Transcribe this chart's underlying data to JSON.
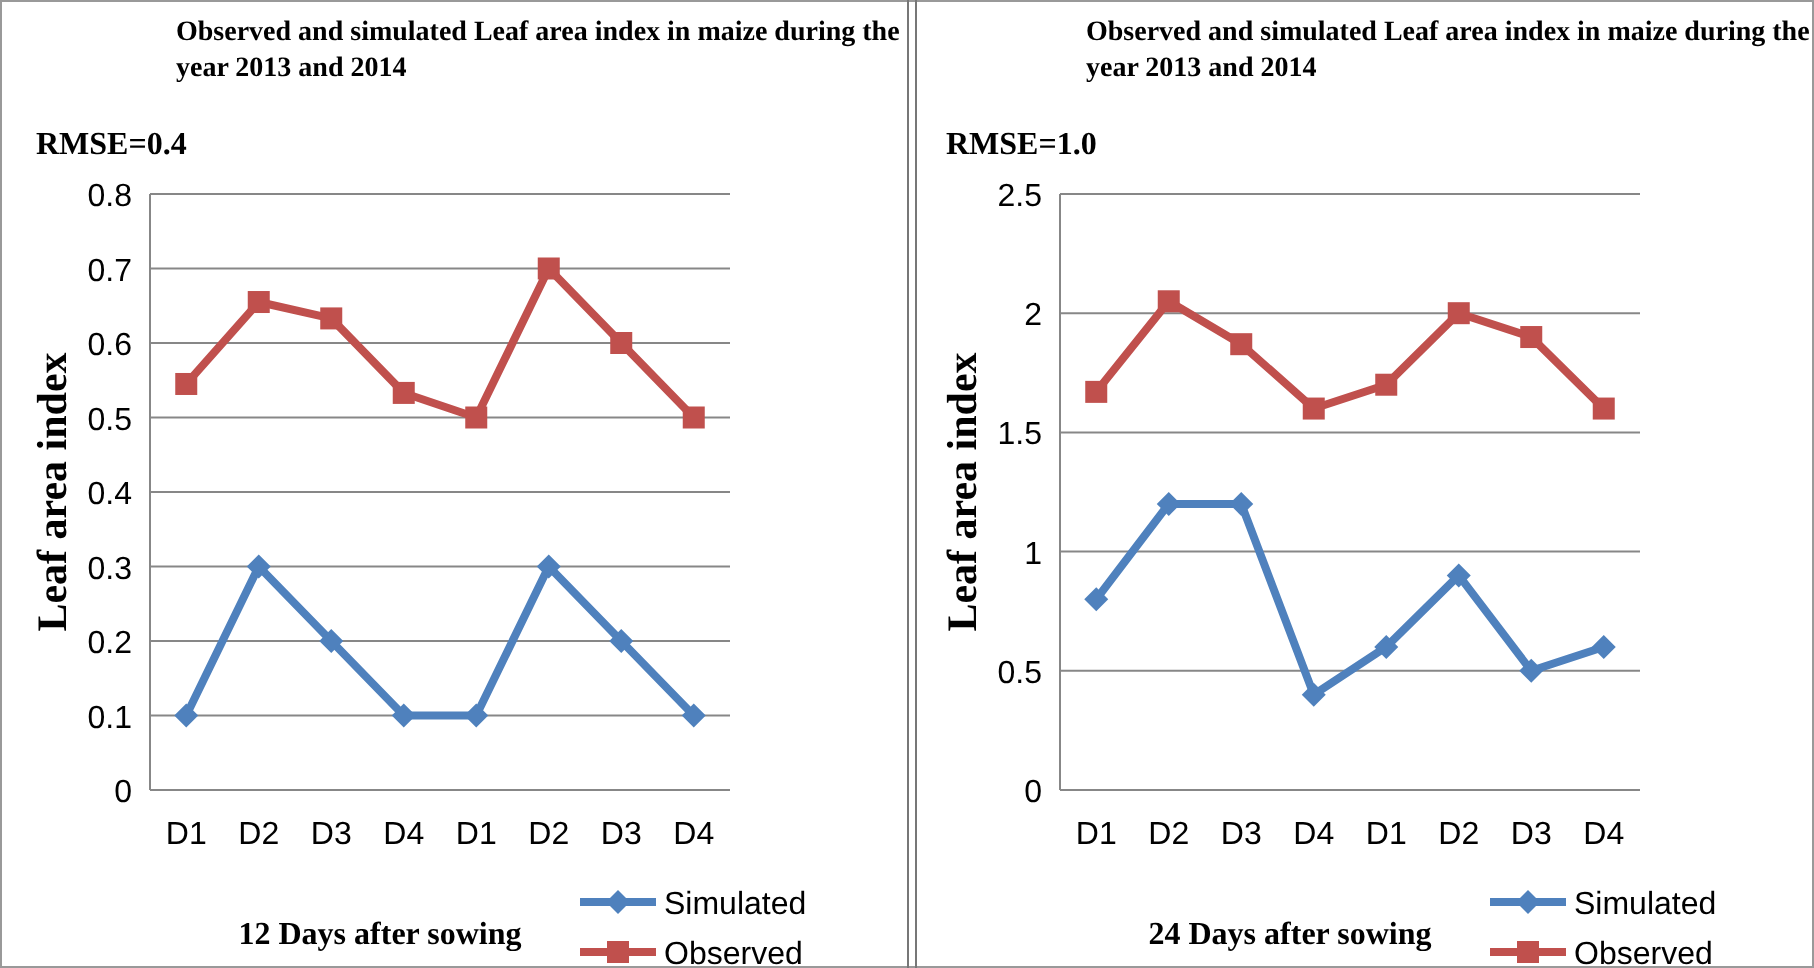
{
  "chart_data": [
    {
      "type": "line",
      "title": "Observed and simulated Leaf area index in maize during the year 2013 and 2014",
      "xlabel": "12 Days after sowing",
      "ylabel": "Leaf area index",
      "annotations": [
        "RMSE=0.4"
      ],
      "categories": [
        "D1",
        "D2",
        "D3",
        "D4",
        "D1",
        "D2",
        "D3",
        "D4"
      ],
      "series": [
        {
          "name": "Simulated",
          "color": "#4f81bd",
          "marker": "diamond",
          "values": [
            0.1,
            0.3,
            0.2,
            0.1,
            0.1,
            0.3,
            0.2,
            0.1
          ]
        },
        {
          "name": "Observed",
          "color": "#c0504d",
          "marker": "square",
          "values": [
            0.545,
            0.655,
            0.633,
            0.533,
            0.5,
            0.7,
            0.6,
            0.5
          ]
        }
      ],
      "ylim": [
        0,
        0.8
      ],
      "yticks": [
        0,
        0.1,
        0.2,
        0.3,
        0.4,
        0.5,
        0.6,
        0.7,
        0.8
      ],
      "grid": "y",
      "legend": "bottom"
    },
    {
      "type": "line",
      "title": "Observed and simulated Leaf area index in maize during the year 2013 and 2014",
      "xlabel": "24 Days after sowing",
      "ylabel": "Leaf area index",
      "annotations": [
        "RMSE=1.0"
      ],
      "categories": [
        "D1",
        "D2",
        "D3",
        "D4",
        "D1",
        "D2",
        "D3",
        "D4"
      ],
      "series": [
        {
          "name": "Simulated",
          "color": "#4f81bd",
          "marker": "diamond",
          "values": [
            0.8,
            1.2,
            1.2,
            0.4,
            0.6,
            0.9,
            0.5,
            0.6
          ]
        },
        {
          "name": "Observed",
          "color": "#c0504d",
          "marker": "square",
          "values": [
            1.67,
            2.05,
            1.87,
            1.6,
            1.7,
            2.0,
            1.9,
            1.6
          ]
        }
      ],
      "ylim": [
        0,
        2.5
      ],
      "yticks": [
        0,
        0.5,
        1,
        1.5,
        2,
        2.5
      ],
      "grid": "y",
      "legend": "bottom"
    }
  ]
}
